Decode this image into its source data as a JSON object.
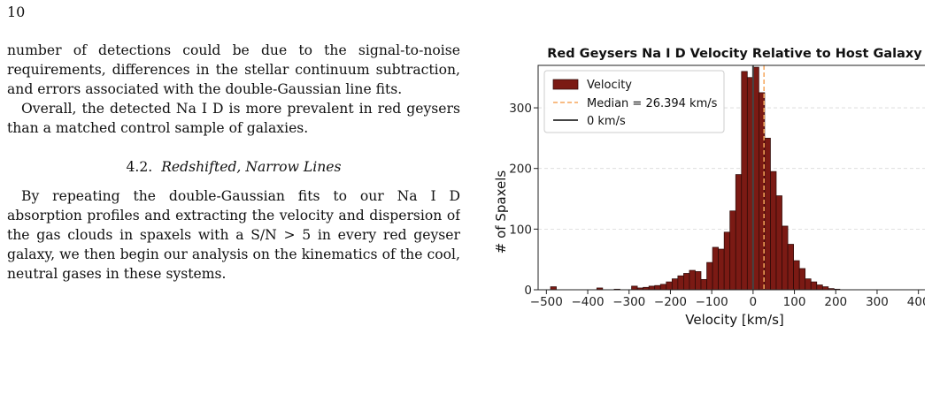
{
  "page": {
    "number": "10"
  },
  "paper": {
    "para1": "number of detections could be due to the signal-to-noise requirements, differences in the stellar continuum subtraction, and errors associated with the double-Gaussian line fits.",
    "para2": "Overall, the detected Na I D is more prevalent in red geysers than a matched control sample of galaxies.",
    "section_number": "4.2.",
    "section_title": "Redshifted, Narrow Lines",
    "para3": "By repeating the double-Gaussian fits to our Na I D absorption profiles and extracting the velocity and dispersion of the gas clouds in spaxels with a S/N > 5 in every red geyser galaxy, we then begin our analysis on the kinematics of the cool, neutral gases in these systems."
  },
  "chart_data": {
    "type": "bar",
    "title": "Red Geysers Na I D Velocity Relative to Host Galaxy",
    "xlabel": "Velocity [km/s]",
    "ylabel": "# of Spaxels",
    "xlim": [
      -520,
      420
    ],
    "ylim": [
      0,
      370
    ],
    "xticks": [
      "-500",
      "-400",
      "-300",
      "-200",
      "-100",
      "0",
      "100",
      "200",
      "300",
      "400"
    ],
    "yticks": [
      "0",
      "100",
      "200",
      "300"
    ],
    "grid": "horizontal dashed",
    "legend_position": "top-left",
    "legend": [
      "Velocity",
      "Median = 26.394 km/s",
      "0 km/s"
    ],
    "colors": {
      "bars": "#7b1a14",
      "bar_edge": "#2a0806",
      "median_line": "#f5a65b",
      "zero_line": "#444444"
    },
    "bin_width": 14,
    "bin_start": -490,
    "counts": [
      5,
      0,
      0,
      0,
      0,
      0,
      0,
      0,
      3,
      0,
      0,
      1,
      0,
      0,
      6,
      3,
      4,
      6,
      7,
      9,
      13,
      18,
      23,
      27,
      32,
      30,
      17,
      45,
      70,
      67,
      95,
      130,
      190,
      360,
      350,
      367,
      325,
      250,
      195,
      155,
      105,
      75,
      48,
      35,
      18,
      13,
      8,
      5,
      2,
      1,
      0,
      0,
      0,
      0,
      0,
      0,
      0,
      0,
      0,
      0,
      0,
      0,
      0,
      0,
      0,
      0,
      2
    ],
    "median": 26.394,
    "zero": 0
  }
}
